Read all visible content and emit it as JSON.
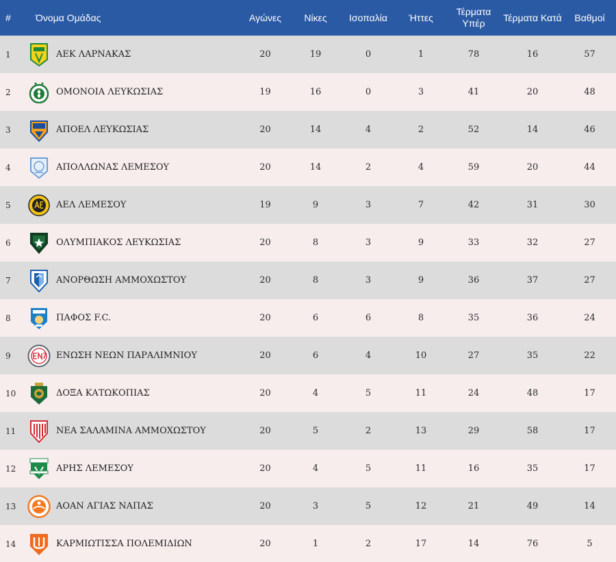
{
  "header": {
    "rank": "#",
    "team": "Όνομα Ομάδας",
    "played": "Αγώνες",
    "wins": "Νίκες",
    "draws": "Ισοπαλία",
    "losses": "Ήττες",
    "goals_for": "Τέρματα Υπέρ",
    "goals_against": "Τέρματα Κατά",
    "points": "Βαθμοί"
  },
  "colors": {
    "header_bg": "#2b5aa4",
    "row_dark": "#dcdcdc",
    "row_light": "#f7eded"
  },
  "rows": [
    {
      "rank": "1",
      "team": "ΑΕΚ ΛΑΡΝΑΚΑΣ",
      "logo": "aek-larnaca-logo",
      "played": "20",
      "wins": "19",
      "draws": "0",
      "losses": "1",
      "gf": "78",
      "ga": "16",
      "pts": "57"
    },
    {
      "rank": "2",
      "team": "ΟΜΟΝΟΙΑ ΛΕΥΚΩΣΙΑΣ",
      "logo": "omonia-logo",
      "played": "19",
      "wins": "16",
      "draws": "0",
      "losses": "3",
      "gf": "41",
      "ga": "20",
      "pts": "48"
    },
    {
      "rank": "3",
      "team": "ΑΠΟΕΛ ΛΕΥΚΩΣΙΑΣ",
      "logo": "apoel-logo",
      "played": "20",
      "wins": "14",
      "draws": "4",
      "losses": "2",
      "gf": "52",
      "ga": "14",
      "pts": "46"
    },
    {
      "rank": "4",
      "team": "ΑΠΟΛΛΩΝΑΣ ΛΕΜΕΣΟΥ",
      "logo": "apollon-logo",
      "played": "20",
      "wins": "14",
      "draws": "2",
      "losses": "4",
      "gf": "59",
      "ga": "20",
      "pts": "44"
    },
    {
      "rank": "5",
      "team": "ΑΕΛ ΛΕΜΕΣΟΥ",
      "logo": "ael-logo",
      "played": "19",
      "wins": "9",
      "draws": "3",
      "losses": "7",
      "gf": "42",
      "ga": "31",
      "pts": "30"
    },
    {
      "rank": "6",
      "team": "ΟΛΥΜΠΙΑΚΟΣ ΛΕΥΚΩΣΙΑΣ",
      "logo": "olympiakos-nicosia-logo",
      "played": "20",
      "wins": "8",
      "draws": "3",
      "losses": "9",
      "gf": "33",
      "ga": "32",
      "pts": "27"
    },
    {
      "rank": "7",
      "team": "ΑΝΟΡΘΩΣΗ ΑΜΜΟΧΩΣΤΟΥ",
      "logo": "anorthosis-logo",
      "played": "20",
      "wins": "8",
      "draws": "3",
      "losses": "9",
      "gf": "36",
      "ga": "37",
      "pts": "27"
    },
    {
      "rank": "8",
      "team": "ΠΑΦΟΣ F.C.",
      "logo": "pafos-logo",
      "played": "20",
      "wins": "6",
      "draws": "6",
      "losses": "8",
      "gf": "35",
      "ga": "36",
      "pts": "24"
    },
    {
      "rank": "9",
      "team": "ΕΝΩΣΗ ΝΕΩΝ ΠΑΡΑΛΙΜΝΙΟΥ",
      "logo": "enp-logo",
      "played": "20",
      "wins": "6",
      "draws": "4",
      "losses": "10",
      "gf": "27",
      "ga": "35",
      "pts": "22"
    },
    {
      "rank": "10",
      "team": "ΔΟΞΑ ΚΑΤΩΚΟΠΙΑΣ",
      "logo": "doxa-logo",
      "played": "20",
      "wins": "4",
      "draws": "5",
      "losses": "11",
      "gf": "24",
      "ga": "48",
      "pts": "17"
    },
    {
      "rank": "11",
      "team": "ΝΕΑ ΣΑΛΑΜΙΝΑ ΑΜΜΟΧΩΣΤΟΥ",
      "logo": "nea-salamina-logo",
      "played": "20",
      "wins": "5",
      "draws": "2",
      "losses": "13",
      "gf": "29",
      "ga": "58",
      "pts": "17"
    },
    {
      "rank": "12",
      "team": "ΑΡΗΣ ΛΕΜΕΣΟΥ",
      "logo": "aris-logo",
      "played": "20",
      "wins": "4",
      "draws": "5",
      "losses": "11",
      "gf": "16",
      "ga": "35",
      "pts": "17"
    },
    {
      "rank": "13",
      "team": "ΑΟΑΝ ΑΓΙΑΣ ΝΑΠΑΣ",
      "logo": "aoan-logo",
      "played": "20",
      "wins": "3",
      "draws": "5",
      "losses": "12",
      "gf": "21",
      "ga": "49",
      "pts": "14"
    },
    {
      "rank": "14",
      "team": "ΚΑΡΜΙΩΤΙΣΣΑ ΠΟΛΕΜΙΔΙΩΝ",
      "logo": "karmiotissa-logo",
      "played": "20",
      "wins": "1",
      "draws": "2",
      "losses": "17",
      "gf": "14",
      "ga": "76",
      "pts": "5"
    }
  ]
}
